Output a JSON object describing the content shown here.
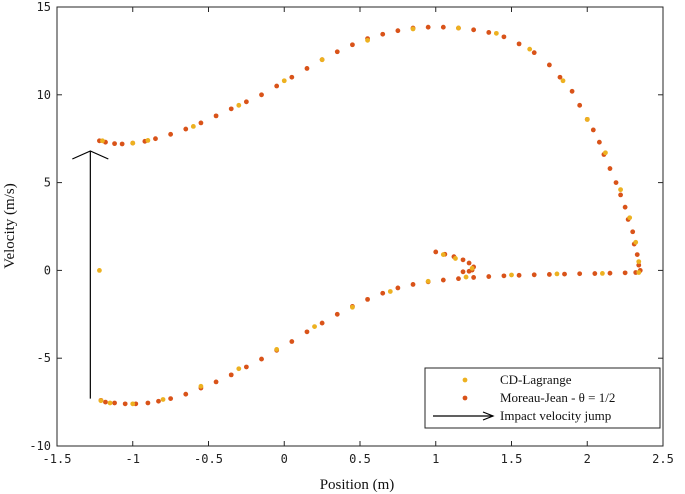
{
  "chart_data": {
    "type": "scatter",
    "xlabel": "Position (m)",
    "ylabel": "Velocity (m/s)",
    "xlim": [
      -1.5,
      2.5
    ],
    "ylim": [
      -10,
      15
    ],
    "x_ticks": [
      "-1.5",
      "-1",
      "-0.5",
      "0",
      "0.5",
      "1",
      "1.5",
      "2",
      "2.5"
    ],
    "y_ticks": [
      "-10",
      "-5",
      "0",
      "5",
      "10",
      "15"
    ],
    "grid": false,
    "legend_position": "bottom-right",
    "series": [
      {
        "name": "CD-Lagrange",
        "color": "#EDB120",
        "marker": "dot",
        "points": [
          [
            -1.22,
            0.0
          ],
          [
            -1.21,
            -7.42
          ],
          [
            -1.15,
            -7.55
          ],
          [
            -1.0,
            -7.6
          ],
          [
            -0.8,
            -7.35
          ],
          [
            -0.55,
            -6.6
          ],
          [
            -0.3,
            -5.6
          ],
          [
            -0.05,
            -4.5
          ],
          [
            0.2,
            -3.2
          ],
          [
            0.45,
            -2.1
          ],
          [
            0.7,
            -1.2
          ],
          [
            0.95,
            -0.62
          ],
          [
            1.2,
            -0.38
          ],
          [
            1.5,
            -0.26
          ],
          [
            1.8,
            -0.2
          ],
          [
            2.1,
            -0.17
          ],
          [
            2.34,
            -0.12
          ],
          [
            2.34,
            0.5
          ],
          [
            2.32,
            1.6
          ],
          [
            2.28,
            3.0
          ],
          [
            2.22,
            4.6
          ],
          [
            2.12,
            6.7
          ],
          [
            2.0,
            8.6
          ],
          [
            1.84,
            10.8
          ],
          [
            1.62,
            12.6
          ],
          [
            1.4,
            13.5
          ],
          [
            1.15,
            13.8
          ],
          [
            0.85,
            13.75
          ],
          [
            0.55,
            13.1
          ],
          [
            0.25,
            12.0
          ],
          [
            0.0,
            10.8
          ],
          [
            -0.3,
            9.4
          ],
          [
            -0.6,
            8.2
          ],
          [
            -0.9,
            7.4
          ],
          [
            -1.0,
            7.25
          ],
          [
            -1.2,
            7.38
          ],
          [
            1.05,
            0.9
          ],
          [
            1.13,
            0.68
          ],
          [
            1.24,
            0.12
          ]
        ]
      },
      {
        "name": "Moreau-Jean - θ = 1/2",
        "color": "#D95319",
        "marker": "dot",
        "points": [
          [
            -1.21,
            -7.4
          ],
          [
            -1.18,
            -7.5
          ],
          [
            -1.12,
            -7.55
          ],
          [
            -1.05,
            -7.6
          ],
          [
            -0.98,
            -7.6
          ],
          [
            -0.9,
            -7.55
          ],
          [
            -0.83,
            -7.45
          ],
          [
            -0.75,
            -7.3
          ],
          [
            -0.65,
            -7.05
          ],
          [
            -0.55,
            -6.7
          ],
          [
            -0.45,
            -6.35
          ],
          [
            -0.35,
            -5.95
          ],
          [
            -0.25,
            -5.5
          ],
          [
            -0.15,
            -5.05
          ],
          [
            -0.05,
            -4.55
          ],
          [
            0.05,
            -4.05
          ],
          [
            0.15,
            -3.5
          ],
          [
            0.25,
            -3.0
          ],
          [
            0.35,
            -2.5
          ],
          [
            0.45,
            -2.05
          ],
          [
            0.55,
            -1.65
          ],
          [
            0.65,
            -1.3
          ],
          [
            0.75,
            -1.0
          ],
          [
            0.85,
            -0.8
          ],
          [
            0.95,
            -0.65
          ],
          [
            1.05,
            -0.55
          ],
          [
            1.15,
            -0.47
          ],
          [
            1.25,
            -0.4
          ],
          [
            1.35,
            -0.35
          ],
          [
            1.45,
            -0.31
          ],
          [
            1.55,
            -0.28
          ],
          [
            1.65,
            -0.25
          ],
          [
            1.75,
            -0.23
          ],
          [
            1.85,
            -0.21
          ],
          [
            1.95,
            -0.19
          ],
          [
            2.05,
            -0.18
          ],
          [
            2.15,
            -0.16
          ],
          [
            2.25,
            -0.14
          ],
          [
            2.32,
            -0.12
          ],
          [
            2.35,
            0.0
          ],
          [
            2.34,
            0.3
          ],
          [
            2.33,
            0.9
          ],
          [
            2.31,
            1.5
          ],
          [
            2.3,
            2.2
          ],
          [
            2.27,
            2.9
          ],
          [
            2.25,
            3.6
          ],
          [
            2.22,
            4.3
          ],
          [
            2.19,
            5.0
          ],
          [
            2.15,
            5.8
          ],
          [
            2.11,
            6.6
          ],
          [
            2.08,
            7.3
          ],
          [
            2.04,
            8.0
          ],
          [
            2.0,
            8.6
          ],
          [
            1.95,
            9.4
          ],
          [
            1.9,
            10.2
          ],
          [
            1.82,
            11.0
          ],
          [
            1.75,
            11.7
          ],
          [
            1.65,
            12.4
          ],
          [
            1.55,
            12.9
          ],
          [
            1.45,
            13.3
          ],
          [
            1.35,
            13.55
          ],
          [
            1.25,
            13.7
          ],
          [
            1.15,
            13.8
          ],
          [
            1.05,
            13.85
          ],
          [
            0.95,
            13.85
          ],
          [
            0.85,
            13.8
          ],
          [
            0.75,
            13.65
          ],
          [
            0.65,
            13.45
          ],
          [
            0.55,
            13.2
          ],
          [
            0.45,
            12.85
          ],
          [
            0.35,
            12.45
          ],
          [
            0.25,
            12.0
          ],
          [
            0.15,
            11.5
          ],
          [
            0.05,
            11.0
          ],
          [
            -0.05,
            10.5
          ],
          [
            -0.15,
            10.0
          ],
          [
            -0.25,
            9.6
          ],
          [
            -0.35,
            9.2
          ],
          [
            -0.45,
            8.8
          ],
          [
            -0.55,
            8.4
          ],
          [
            -0.65,
            8.05
          ],
          [
            -0.75,
            7.75
          ],
          [
            -0.85,
            7.5
          ],
          [
            -0.92,
            7.35
          ],
          [
            -1.0,
            7.25
          ],
          [
            -1.07,
            7.2
          ],
          [
            -1.12,
            7.22
          ],
          [
            -1.18,
            7.3
          ],
          [
            -1.22,
            7.38
          ],
          [
            1.0,
            1.05
          ],
          [
            1.06,
            0.92
          ],
          [
            1.12,
            0.78
          ],
          [
            1.18,
            0.6
          ],
          [
            1.22,
            0.42
          ],
          [
            1.25,
            0.2
          ],
          [
            1.24,
            0.02
          ],
          [
            1.22,
            -0.05
          ],
          [
            1.18,
            -0.08
          ]
        ]
      }
    ],
    "annotation": {
      "type": "arrow",
      "from": [
        -1.28,
        -7.3
      ],
      "to": [
        -1.28,
        6.8
      ]
    },
    "legend_entries": [
      {
        "label": "CD-Lagrange",
        "kind": "dot",
        "color": "#EDB120"
      },
      {
        "label": "Moreau-Jean - θ = 1/2",
        "kind": "dot",
        "color": "#D95319"
      },
      {
        "label": "Impact velocity jump",
        "kind": "arrow",
        "color": "#000000"
      }
    ]
  }
}
